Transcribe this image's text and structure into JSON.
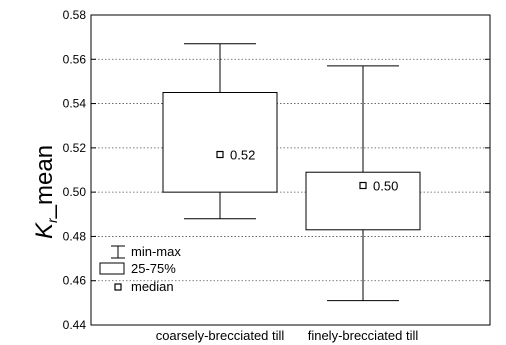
{
  "chart_data": {
    "type": "boxplot",
    "ylabel": {
      "main": "K",
      "subscript": "r",
      "suffix": "_mean"
    },
    "ylim": [
      0.44,
      0.58
    ],
    "yticks": [
      0.44,
      0.46,
      0.48,
      0.5,
      0.52,
      0.54,
      0.56,
      0.58
    ],
    "ytick_labels": [
      "0.44",
      "0.46",
      "0.48",
      "0.50",
      "0.52",
      "0.54",
      "0.56",
      "0.58"
    ],
    "grid": "horizontal dotted",
    "categories": [
      "coarsely-brecciated till",
      "finely-brecciated till"
    ],
    "boxes": [
      {
        "category": "coarsely-brecciated till",
        "min": 0.488,
        "q1": 0.5,
        "median": 0.517,
        "q3": 0.545,
        "max": 0.567,
        "median_label": "0.52"
      },
      {
        "category": "finely-brecciated till",
        "min": 0.451,
        "q1": 0.483,
        "median": 0.503,
        "q3": 0.509,
        "max": 0.557,
        "median_label": "0.50"
      }
    ],
    "legend": {
      "placement": "bottom-left",
      "items": [
        {
          "symbol": "whisker",
          "label": "min-max"
        },
        {
          "symbol": "box",
          "label": "25-75%"
        },
        {
          "symbol": "square",
          "label": "median"
        }
      ]
    }
  }
}
